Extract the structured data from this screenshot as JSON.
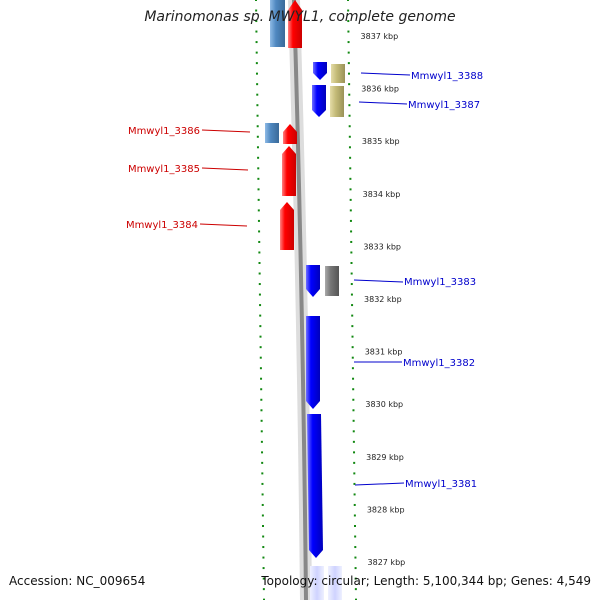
{
  "title": "Marinomonas sp. MWYL1, complete genome",
  "accession_text": "Accession: NC_009654",
  "stats_text": "Topology: circular; Length: 5,100,344 bp; Genes: 4,549",
  "colors": {
    "forward_cds": "#ff0000",
    "reverse_cds": "#0000ff",
    "steelblue": "#4f88c0",
    "khaki": "#c4bb78",
    "grey": "#777777",
    "label_forward": "#cc0000",
    "label_reverse": "#0000cc",
    "tick": "#118811"
  },
  "scale": {
    "labels": [
      "3837 kbp",
      "3836 kbp",
      "3835 kbp",
      "3834 kbp",
      "3833 kbp",
      "3832 kbp",
      "3831 kbp",
      "3830 kbp",
      "3829 kbp",
      "3828 kbp",
      "3827 kbp"
    ]
  },
  "genes": [
    {
      "name": "Mmwyl1_3388",
      "strand": "reverse",
      "labelled": true
    },
    {
      "name": "Mmwyl1_3387",
      "strand": "reverse",
      "labelled": true
    },
    {
      "name": "Mmwyl1_3386",
      "strand": "forward",
      "labelled": true
    },
    {
      "name": "Mmwyl1_3385",
      "strand": "forward",
      "labelled": true
    },
    {
      "name": "Mmwyl1_3384",
      "strand": "forward",
      "labelled": true
    },
    {
      "name": "Mmwyl1_3383",
      "strand": "reverse",
      "labelled": true
    },
    {
      "name": "Mmwyl1_3382",
      "strand": "reverse",
      "labelled": true
    },
    {
      "name": "Mmwyl1_3381",
      "strand": "reverse",
      "labelled": true
    }
  ]
}
